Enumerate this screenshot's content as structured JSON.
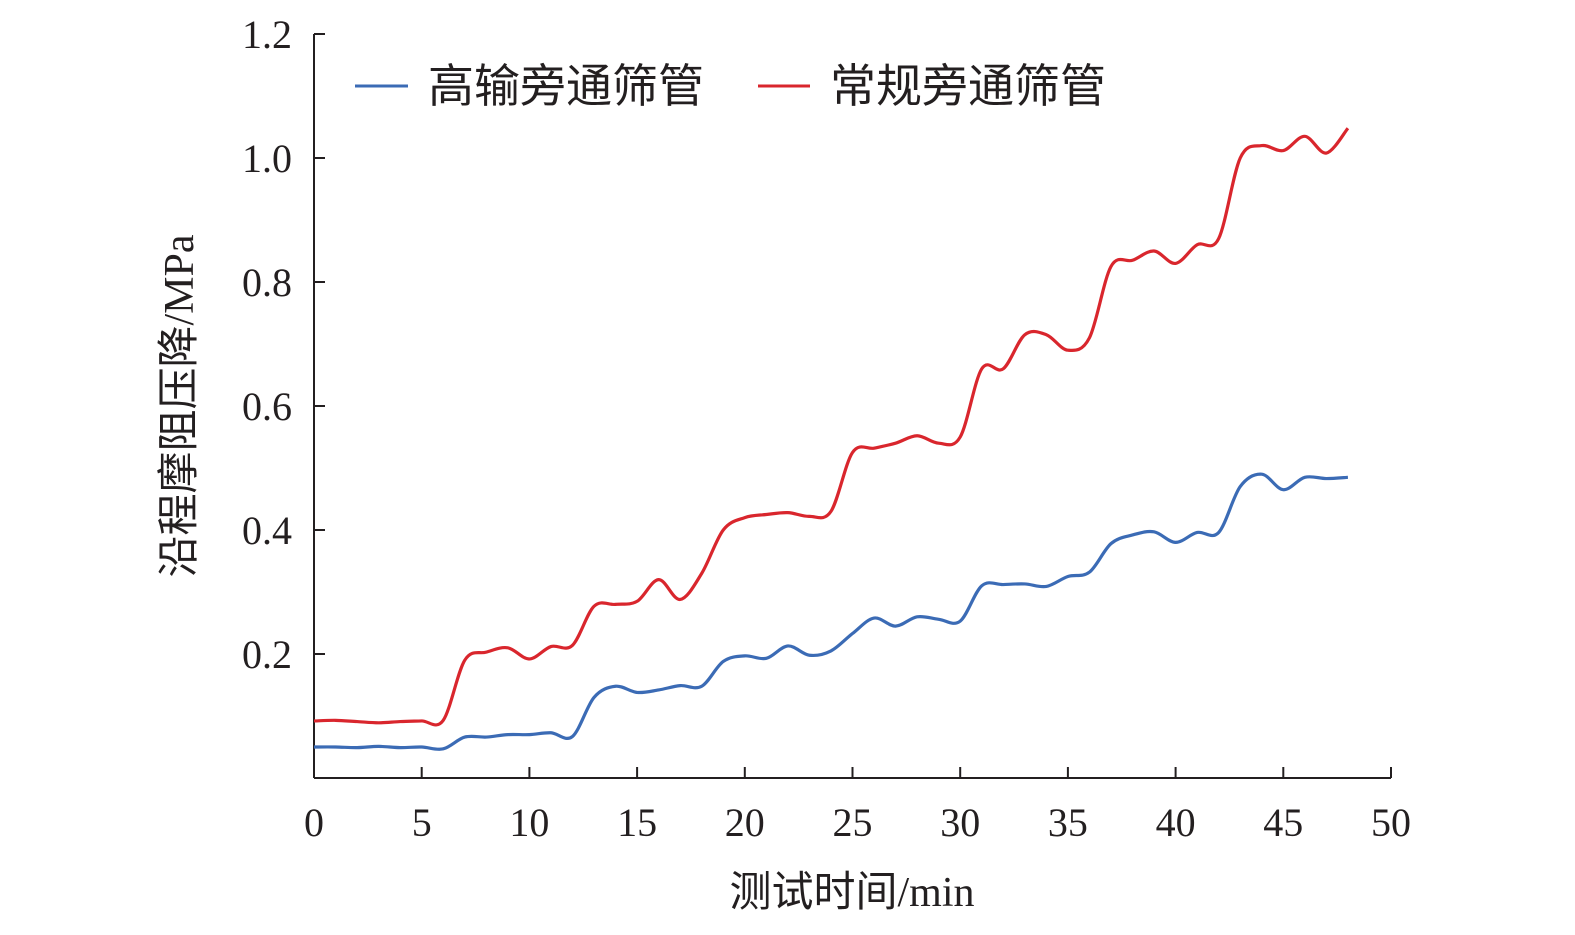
{
  "chart_data": {
    "type": "line",
    "xlabel": "测试时间/min",
    "ylabel": "沿程摩阻压降/MPa",
    "xlim": [
      0,
      50
    ],
    "ylim": [
      0,
      1.2
    ],
    "x_ticks": [
      "0",
      "5",
      "10",
      "15",
      "20",
      "25",
      "30",
      "35",
      "40",
      "45",
      "50"
    ],
    "y_ticks": [
      "0.2",
      "0.4",
      "0.6",
      "0.8",
      "1.0",
      "1.2"
    ],
    "grid": false,
    "legend_position": "top",
    "series": [
      {
        "name": "高输旁通筛管",
        "color": "#3b6bb5",
        "points": [
          [
            0,
            0.05
          ],
          [
            1,
            0.05
          ],
          [
            2,
            0.049
          ],
          [
            3,
            0.051
          ],
          [
            4,
            0.049
          ],
          [
            5,
            0.05
          ],
          [
            6,
            0.047
          ],
          [
            7,
            0.066
          ],
          [
            8,
            0.066
          ],
          [
            9,
            0.07
          ],
          [
            10,
            0.07
          ],
          [
            11,
            0.073
          ],
          [
            12,
            0.067
          ],
          [
            13,
            0.13
          ],
          [
            14,
            0.148
          ],
          [
            15,
            0.138
          ],
          [
            16,
            0.142
          ],
          [
            17,
            0.149
          ],
          [
            18,
            0.148
          ],
          [
            19,
            0.188
          ],
          [
            20,
            0.197
          ],
          [
            21,
            0.193
          ],
          [
            22,
            0.213
          ],
          [
            23,
            0.198
          ],
          [
            24,
            0.205
          ],
          [
            25,
            0.233
          ],
          [
            26,
            0.258
          ],
          [
            27,
            0.245
          ],
          [
            28,
            0.26
          ],
          [
            29,
            0.256
          ],
          [
            30,
            0.253
          ],
          [
            31,
            0.31
          ],
          [
            32,
            0.312
          ],
          [
            33,
            0.313
          ],
          [
            34,
            0.309
          ],
          [
            35,
            0.325
          ],
          [
            36,
            0.332
          ],
          [
            37,
            0.378
          ],
          [
            38,
            0.392
          ],
          [
            39,
            0.397
          ],
          [
            40,
            0.38
          ],
          [
            41,
            0.396
          ],
          [
            42,
            0.396
          ],
          [
            43,
            0.47
          ],
          [
            44,
            0.49
          ],
          [
            45,
            0.465
          ],
          [
            46,
            0.485
          ],
          [
            47,
            0.483
          ],
          [
            48,
            0.485
          ]
        ]
      },
      {
        "name": "常规旁通筛管",
        "color": "#d9262d",
        "points": [
          [
            0,
            0.092
          ],
          [
            1,
            0.093
          ],
          [
            2,
            0.091
          ],
          [
            3,
            0.089
          ],
          [
            4,
            0.091
          ],
          [
            5,
            0.092
          ],
          [
            6,
            0.093
          ],
          [
            7,
            0.19
          ],
          [
            8,
            0.203
          ],
          [
            9,
            0.21
          ],
          [
            10,
            0.192
          ],
          [
            11,
            0.212
          ],
          [
            12,
            0.214
          ],
          [
            13,
            0.277
          ],
          [
            14,
            0.28
          ],
          [
            15,
            0.285
          ],
          [
            16,
            0.32
          ],
          [
            17,
            0.288
          ],
          [
            18,
            0.33
          ],
          [
            19,
            0.4
          ],
          [
            20,
            0.42
          ],
          [
            21,
            0.425
          ],
          [
            22,
            0.428
          ],
          [
            23,
            0.422
          ],
          [
            24,
            0.43
          ],
          [
            25,
            0.525
          ],
          [
            26,
            0.532
          ],
          [
            27,
            0.54
          ],
          [
            28,
            0.552
          ],
          [
            29,
            0.54
          ],
          [
            30,
            0.55
          ],
          [
            31,
            0.66
          ],
          [
            32,
            0.66
          ],
          [
            33,
            0.715
          ],
          [
            34,
            0.715
          ],
          [
            35,
            0.69
          ],
          [
            36,
            0.71
          ],
          [
            37,
            0.825
          ],
          [
            38,
            0.835
          ],
          [
            39,
            0.85
          ],
          [
            40,
            0.83
          ],
          [
            41,
            0.86
          ],
          [
            42,
            0.87
          ],
          [
            43,
            1.0
          ],
          [
            44,
            1.02
          ],
          [
            45,
            1.012
          ],
          [
            46,
            1.035
          ],
          [
            47,
            1.008
          ],
          [
            48,
            1.048
          ]
        ]
      }
    ]
  }
}
